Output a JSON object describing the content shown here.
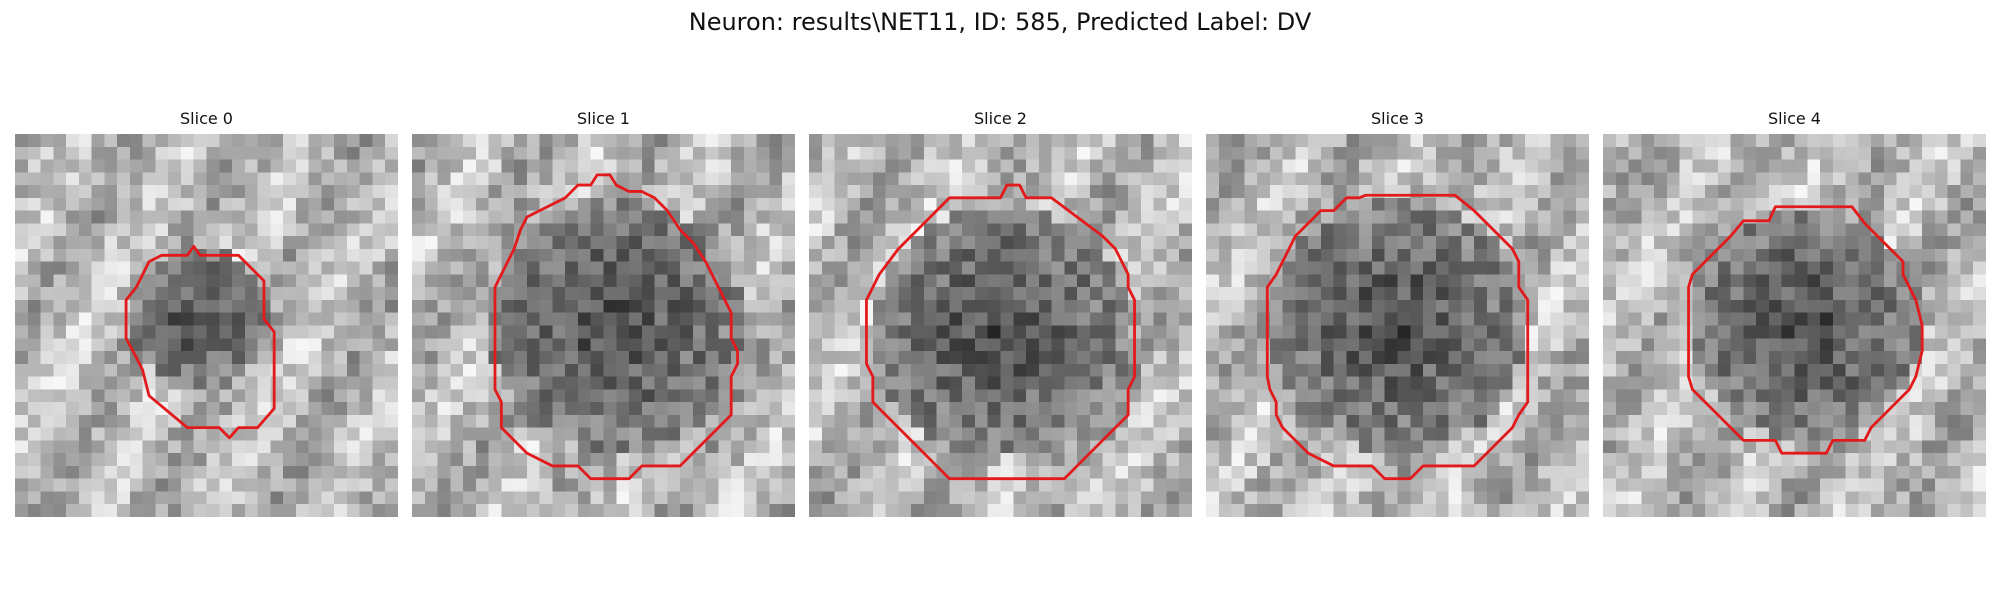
{
  "figure": {
    "title": "Neuron: results\\NET11, ID: 585, Predicted Label: DV"
  },
  "contour_color": "#e31a1c",
  "colormap": "grayscale",
  "panels": [
    {
      "title": "Slice 0"
    },
    {
      "title": "Slice 1"
    },
    {
      "title": "Slice 2"
    },
    {
      "title": "Slice 3"
    },
    {
      "title": "Slice 4"
    }
  ]
}
